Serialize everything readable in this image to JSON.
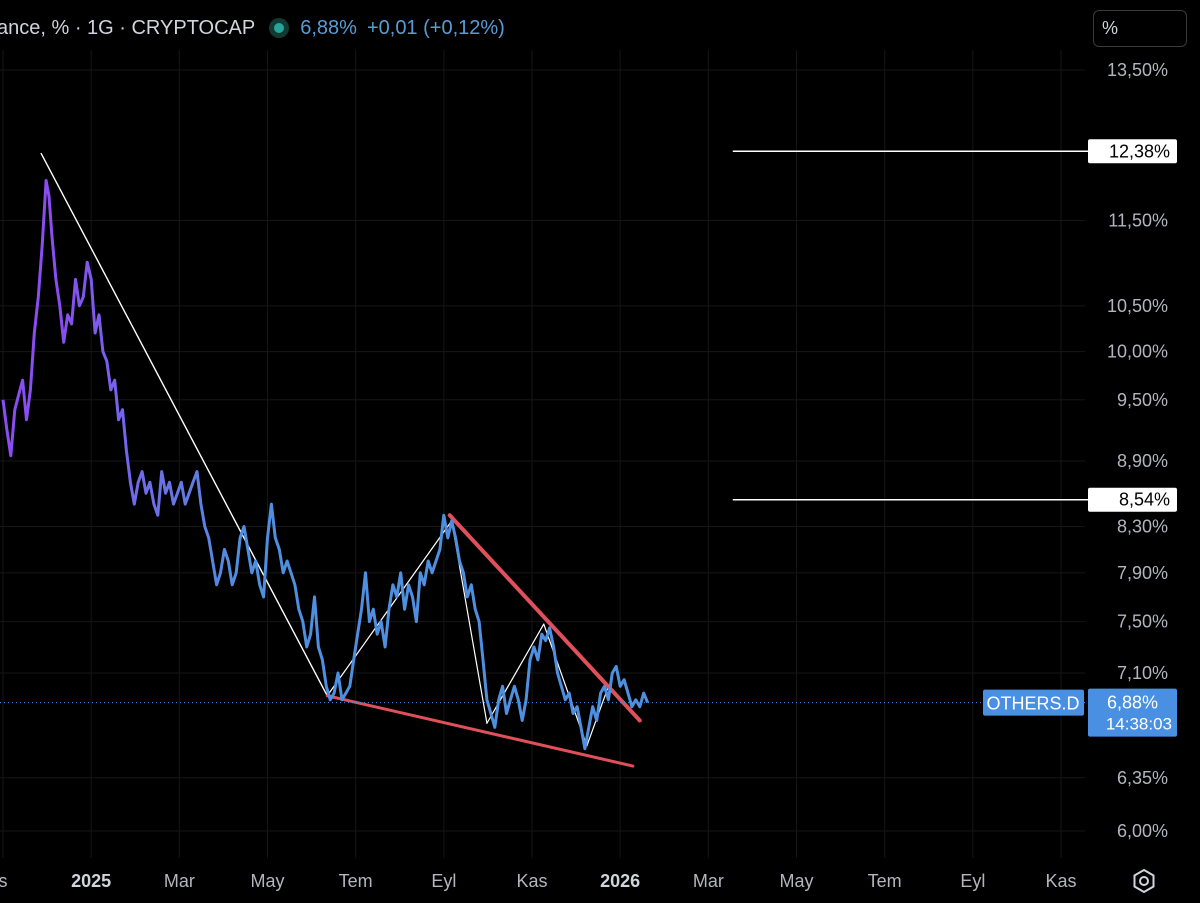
{
  "header": {
    "symbol": "ance, % · 1G · CRYPTOCAP",
    "value": "6,88%",
    "change": "+0,01 (+0,12%)"
  },
  "scale_button": {
    "label": "%"
  },
  "colors": {
    "background": "#000000",
    "line_early": "#8a4df0",
    "line_late": "#4f8fe0",
    "trend_red": "#e0505a",
    "accent_blue": "#4a90e2"
  },
  "chart_data": {
    "type": "line",
    "title": "OTHERS.D",
    "series_name": "OTHERS.D",
    "y_scale": "log",
    "ylim": [
      5.8,
      14.2
    ],
    "y_ticks": [
      {
        "value": 13.5,
        "label": "13,50%"
      },
      {
        "value": 11.5,
        "label": "11,50%"
      },
      {
        "value": 10.5,
        "label": "10,50%"
      },
      {
        "value": 10.0,
        "label": "10,00%"
      },
      {
        "value": 9.5,
        "label": "9,50%"
      },
      {
        "value": 8.9,
        "label": "8,90%"
      },
      {
        "value": 8.3,
        "label": "8,30%"
      },
      {
        "value": 7.9,
        "label": "7,90%"
      },
      {
        "value": 7.5,
        "label": "7,50%"
      },
      {
        "value": 7.1,
        "label": "7,10%"
      },
      {
        "value": 6.35,
        "label": "6,35%"
      },
      {
        "value": 6.0,
        "label": "6,00%"
      }
    ],
    "x_ticks": [
      {
        "t": 0,
        "label": "s",
        "bold": false
      },
      {
        "t": 9,
        "label": "2025",
        "bold": true
      },
      {
        "t": 18,
        "label": "Mar",
        "bold": false
      },
      {
        "t": 27,
        "label": "May",
        "bold": false
      },
      {
        "t": 36,
        "label": "Tem",
        "bold": false
      },
      {
        "t": 45,
        "label": "Eyl",
        "bold": false
      },
      {
        "t": 54,
        "label": "Kas",
        "bold": false
      },
      {
        "t": 63,
        "label": "2026",
        "bold": true
      },
      {
        "t": 72,
        "label": "Mar",
        "bold": false
      },
      {
        "t": 81,
        "label": "May",
        "bold": false
      },
      {
        "t": 90,
        "label": "Tem",
        "bold": false
      },
      {
        "t": 99,
        "label": "Eyl",
        "bold": false
      },
      {
        "t": 108,
        "label": "Kas",
        "bold": false
      }
    ],
    "xlim": [
      0,
      115
    ],
    "points": [
      [
        0,
        9.5
      ],
      [
        0.4,
        9.2
      ],
      [
        0.8,
        8.95
      ],
      [
        1.2,
        9.4
      ],
      [
        1.6,
        9.55
      ],
      [
        2.0,
        9.7
      ],
      [
        2.4,
        9.3
      ],
      [
        2.8,
        9.6
      ],
      [
        3.2,
        10.2
      ],
      [
        3.6,
        10.6
      ],
      [
        4.0,
        11.2
      ],
      [
        4.4,
        12.0
      ],
      [
        4.7,
        11.8
      ],
      [
        5.0,
        11.3
      ],
      [
        5.4,
        10.8
      ],
      [
        5.8,
        10.5
      ],
      [
        6.2,
        10.1
      ],
      [
        6.6,
        10.4
      ],
      [
        7.0,
        10.3
      ],
      [
        7.4,
        10.8
      ],
      [
        7.8,
        10.5
      ],
      [
        8.2,
        10.6
      ],
      [
        8.6,
        11.0
      ],
      [
        9.0,
        10.8
      ],
      [
        9.4,
        10.2
      ],
      [
        9.8,
        10.4
      ],
      [
        10.2,
        10.0
      ],
      [
        10.6,
        9.9
      ],
      [
        11.0,
        9.6
      ],
      [
        11.4,
        9.7
      ],
      [
        11.8,
        9.3
      ],
      [
        12.2,
        9.4
      ],
      [
        12.6,
        9.0
      ],
      [
        13.0,
        8.7
      ],
      [
        13.4,
        8.5
      ],
      [
        13.8,
        8.7
      ],
      [
        14.2,
        8.8
      ],
      [
        14.6,
        8.6
      ],
      [
        15.0,
        8.7
      ],
      [
        15.4,
        8.5
      ],
      [
        15.8,
        8.4
      ],
      [
        16.2,
        8.8
      ],
      [
        16.6,
        8.6
      ],
      [
        17.0,
        8.7
      ],
      [
        17.4,
        8.5
      ],
      [
        17.8,
        8.6
      ],
      [
        18.2,
        8.7
      ],
      [
        18.6,
        8.5
      ],
      [
        19.0,
        8.6
      ],
      [
        19.4,
        8.7
      ],
      [
        19.8,
        8.8
      ],
      [
        20.2,
        8.5
      ],
      [
        20.6,
        8.3
      ],
      [
        21.0,
        8.2
      ],
      [
        21.4,
        8.0
      ],
      [
        21.8,
        7.8
      ],
      [
        22.2,
        7.9
      ],
      [
        22.6,
        8.1
      ],
      [
        23.0,
        8.0
      ],
      [
        23.4,
        7.8
      ],
      [
        23.8,
        7.9
      ],
      [
        24.2,
        8.2
      ],
      [
        24.6,
        8.3
      ],
      [
        25.0,
        8.1
      ],
      [
        25.4,
        7.9
      ],
      [
        25.8,
        8.0
      ],
      [
        26.2,
        7.8
      ],
      [
        26.6,
        7.7
      ],
      [
        27.0,
        8.2
      ],
      [
        27.4,
        8.5
      ],
      [
        27.8,
        8.2
      ],
      [
        28.2,
        8.1
      ],
      [
        28.6,
        7.9
      ],
      [
        29.0,
        8.0
      ],
      [
        29.4,
        7.9
      ],
      [
        29.8,
        7.8
      ],
      [
        30.2,
        7.6
      ],
      [
        30.6,
        7.5
      ],
      [
        31.0,
        7.3
      ],
      [
        31.4,
        7.4
      ],
      [
        31.8,
        7.7
      ],
      [
        32.2,
        7.3
      ],
      [
        32.6,
        7.2
      ],
      [
        33.0,
        7.0
      ],
      [
        33.4,
        6.9
      ],
      [
        33.8,
        6.95
      ],
      [
        34.2,
        7.1
      ],
      [
        34.6,
        6.9
      ],
      [
        35.0,
        6.95
      ],
      [
        35.4,
        7.0
      ],
      [
        35.8,
        7.2
      ],
      [
        36.2,
        7.4
      ],
      [
        36.6,
        7.6
      ],
      [
        37.0,
        7.9
      ],
      [
        37.4,
        7.5
      ],
      [
        37.8,
        7.6
      ],
      [
        38.2,
        7.4
      ],
      [
        38.6,
        7.5
      ],
      [
        39.0,
        7.3
      ],
      [
        39.4,
        7.6
      ],
      [
        39.8,
        7.8
      ],
      [
        40.2,
        7.7
      ],
      [
        40.6,
        7.9
      ],
      [
        41.0,
        7.6
      ],
      [
        41.4,
        7.8
      ],
      [
        41.8,
        7.7
      ],
      [
        42.2,
        7.5
      ],
      [
        42.6,
        7.9
      ],
      [
        43.0,
        7.8
      ],
      [
        43.4,
        8.0
      ],
      [
        43.8,
        7.9
      ],
      [
        44.2,
        8.0
      ],
      [
        44.6,
        8.1
      ],
      [
        45.0,
        8.4
      ],
      [
        45.4,
        8.2
      ],
      [
        45.8,
        8.35
      ],
      [
        46.2,
        8.2
      ],
      [
        46.6,
        8.0
      ],
      [
        47.0,
        7.9
      ],
      [
        47.4,
        7.7
      ],
      [
        47.8,
        7.8
      ],
      [
        48.2,
        7.6
      ],
      [
        48.6,
        7.5
      ],
      [
        49.0,
        7.2
      ],
      [
        49.4,
        6.9
      ],
      [
        49.8,
        6.8
      ],
      [
        50.2,
        6.7
      ],
      [
        50.6,
        6.9
      ],
      [
        51.0,
        7.0
      ],
      [
        51.4,
        6.8
      ],
      [
        51.8,
        6.9
      ],
      [
        52.2,
        7.0
      ],
      [
        52.6,
        6.9
      ],
      [
        53.0,
        6.75
      ],
      [
        53.4,
        6.9
      ],
      [
        53.8,
        7.2
      ],
      [
        54.2,
        7.3
      ],
      [
        54.6,
        7.2
      ],
      [
        55.0,
        7.4
      ],
      [
        55.4,
        7.35
      ],
      [
        55.8,
        7.45
      ],
      [
        56.2,
        7.3
      ],
      [
        56.6,
        7.1
      ],
      [
        57.0,
        7.0
      ],
      [
        57.4,
        6.9
      ],
      [
        57.8,
        6.95
      ],
      [
        58.2,
        6.8
      ],
      [
        58.6,
        6.85
      ],
      [
        59.0,
        6.7
      ],
      [
        59.4,
        6.55
      ],
      [
        59.8,
        6.7
      ],
      [
        60.2,
        6.85
      ],
      [
        60.6,
        6.75
      ],
      [
        61.0,
        6.95
      ],
      [
        61.4,
        7.0
      ],
      [
        61.8,
        6.9
      ],
      [
        62.2,
        7.1
      ],
      [
        62.6,
        7.15
      ],
      [
        63.0,
        7.0
      ],
      [
        63.4,
        7.05
      ],
      [
        63.8,
        6.95
      ],
      [
        64.2,
        6.85
      ],
      [
        64.6,
        6.9
      ],
      [
        65.0,
        6.85
      ],
      [
        65.4,
        6.95
      ],
      [
        65.8,
        6.88
      ]
    ],
    "color_transition_t": 12,
    "trendlines": [
      {
        "name": "white-down-leg",
        "color": "#ffffff",
        "width": 1.4,
        "from": [
          3.9,
          12.35
        ],
        "to": [
          33.1,
          6.93
        ]
      },
      {
        "name": "white-zig-1",
        "color": "#ffffff",
        "width": 1.2,
        "from": [
          33.1,
          6.93
        ],
        "to": [
          45.8,
          8.35
        ]
      },
      {
        "name": "white-zig-2",
        "color": "#ffffff",
        "width": 1.2,
        "from": [
          45.8,
          8.35
        ],
        "to": [
          49.4,
          6.73
        ]
      },
      {
        "name": "white-zig-3",
        "color": "#ffffff",
        "width": 1.2,
        "from": [
          49.4,
          6.73
        ],
        "to": [
          55.2,
          7.48
        ]
      },
      {
        "name": "white-zig-4",
        "color": "#ffffff",
        "width": 1.2,
        "from": [
          55.2,
          7.48
        ],
        "to": [
          59.6,
          6.57
        ]
      },
      {
        "name": "white-zig-5",
        "color": "#ffffff",
        "width": 1.2,
        "from": [
          59.6,
          6.57
        ],
        "to": [
          61.8,
          7.0
        ]
      },
      {
        "name": "red-upper",
        "color": "#e0505a",
        "width": 4,
        "from": [
          45.6,
          8.4
        ],
        "to": [
          65.0,
          6.75
        ]
      },
      {
        "name": "red-lower",
        "color": "#e0505a",
        "width": 3,
        "from": [
          33.1,
          6.93
        ],
        "to": [
          64.3,
          6.43
        ]
      }
    ],
    "horizontal_levels": [
      {
        "value": 12.38,
        "label": "12,38%",
        "from_t": 74.5
      },
      {
        "value": 8.54,
        "label": "8,54%",
        "from_t": 74.5
      }
    ],
    "last_value": {
      "value": 6.88,
      "label": "6,88%",
      "countdown": "14:38:03",
      "series_tag": "OTHERS.D"
    }
  }
}
